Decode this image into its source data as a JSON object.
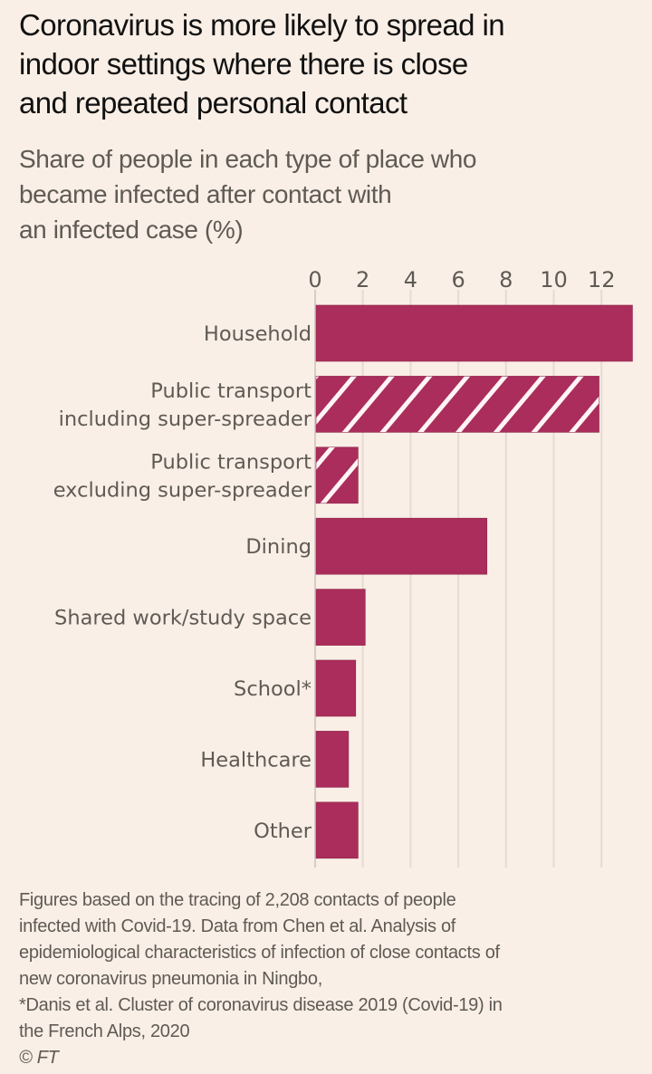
{
  "title": "Coronavirus is more likely to spread in indoor settings where there is close and repeated personal contact",
  "title_lines": [
    "Coronavirus is more likely to spread in",
    "indoor settings where there is close",
    "and repeated personal contact"
  ],
  "subtitle_lines": [
    "Share of people in each type of place who",
    "became infected after contact with",
    "an infected case (%)"
  ],
  "colors": {
    "background": "#f9efe6",
    "bar": "#aa2d5b",
    "hatch_stripe": "#fff5f5",
    "gridline": "#e5dbd2",
    "text": "#5f5a55",
    "title": "#111111"
  },
  "chart_data": {
    "type": "bar",
    "orientation": "horizontal",
    "title": "Coronavirus is more likely to spread in indoor settings where there is close and repeated personal contact",
    "subtitle": "Share of people in each type of place who became infected after contact with an infected case (%)",
    "xlabel": "",
    "ylabel": "",
    "xlim": [
      0,
      13.3
    ],
    "xticks": [
      0,
      2,
      4,
      6,
      8,
      10,
      12
    ],
    "xtick_position": "top",
    "grid": true,
    "categories": [
      {
        "label_lines": [
          "Household"
        ],
        "value": 13.3,
        "pattern": "solid"
      },
      {
        "label_lines": [
          "Public transport",
          "including super-spreader"
        ],
        "value": 11.9,
        "pattern": "hatched"
      },
      {
        "label_lines": [
          "Public transport",
          "excluding super-spreader"
        ],
        "value": 1.8,
        "pattern": "hatched"
      },
      {
        "label_lines": [
          "Dining"
        ],
        "value": 7.2,
        "pattern": "solid"
      },
      {
        "label_lines": [
          "Shared work/study space"
        ],
        "value": 2.1,
        "pattern": "solid"
      },
      {
        "label_lines": [
          "School*"
        ],
        "value": 1.7,
        "pattern": "solid"
      },
      {
        "label_lines": [
          "Healthcare"
        ],
        "value": 1.4,
        "pattern": "solid"
      },
      {
        "label_lines": [
          "Other"
        ],
        "value": 1.8,
        "pattern": "solid"
      }
    ]
  },
  "source_lines": [
    "Figures based on the tracing of 2,208 contacts of people",
    "infected with Covid-19. Data from Chen et al. Analysis of",
    "epidemiological characteristics of infection of close contacts of",
    "new coronavirus pneumonia in Ningbo,",
    "*Danis et al. Cluster of coronavirus disease 2019 (Covid-19) in",
    "the French Alps, 2020"
  ],
  "copyright": "© FT"
}
